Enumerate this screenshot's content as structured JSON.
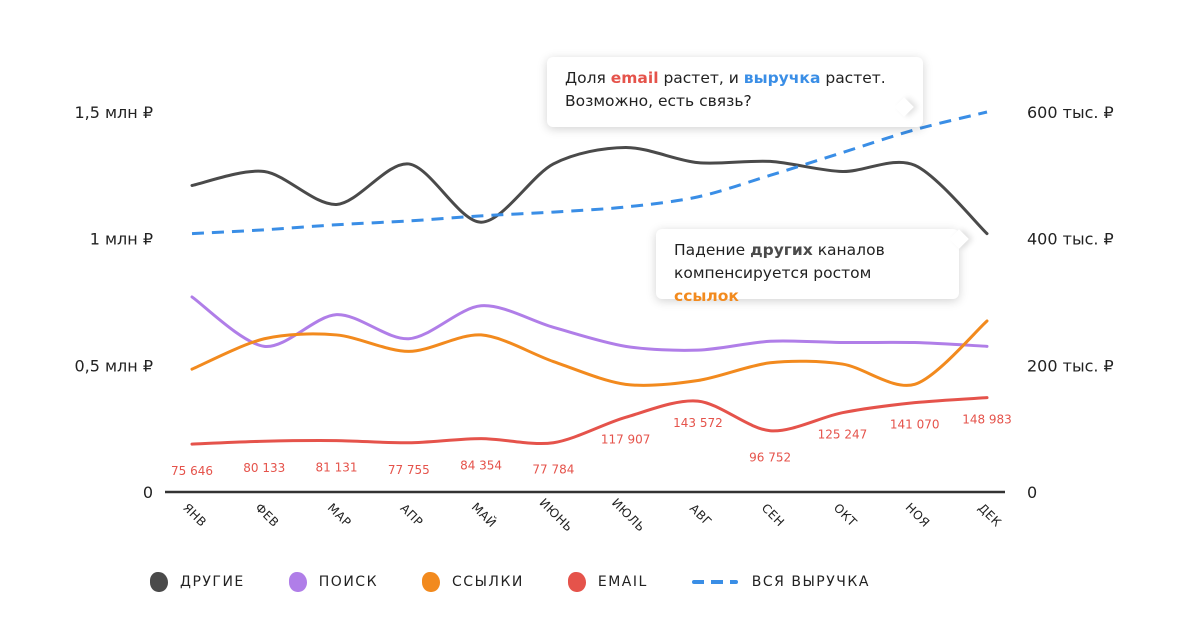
{
  "chart_data": {
    "type": "line",
    "categories": [
      "ЯНВ",
      "ФЕВ",
      "МАР",
      "АПР",
      "МАЙ",
      "ИЮНЬ",
      "ИЮЛЬ",
      "АВГ",
      "СЕН",
      "ОКТ",
      "НОЯ",
      "ДЕК"
    ],
    "left_axis": {
      "ticks": [
        {
          "value": 0,
          "label": "0"
        },
        {
          "value": 500000,
          "label": "0,5 млн ₽"
        },
        {
          "value": 1000000,
          "label": "1 млн ₽"
        },
        {
          "value": 1500000,
          "label": "1,5 млн ₽"
        }
      ],
      "ylim": [
        0,
        1500000
      ]
    },
    "right_axis": {
      "ticks": [
        {
          "value": 0,
          "label": "0"
        },
        {
          "value": 200000,
          "label": "200 тыс. ₽"
        },
        {
          "value": 400000,
          "label": "400 тыс. ₽"
        },
        {
          "value": 600000,
          "label": "600 тыс. ₽"
        }
      ],
      "ylim": [
        0,
        600000
      ]
    },
    "series": [
      {
        "name": "ДРУГИЕ",
        "axis": "left",
        "color": "#4a4a4a",
        "style": "solid",
        "values": [
          1210000,
          1265000,
          1135000,
          1295000,
          1065000,
          1295000,
          1360000,
          1300000,
          1305000,
          1265000,
          1290000,
          1020000
        ]
      },
      {
        "name": "ПОИСК",
        "axis": "left",
        "color": "#b07ee8",
        "style": "solid",
        "values": [
          770000,
          575000,
          700000,
          605000,
          735000,
          650000,
          575000,
          560000,
          595000,
          590000,
          590000,
          575000
        ]
      },
      {
        "name": "ССЫЛКИ",
        "axis": "left",
        "color": "#f28a1e",
        "style": "solid",
        "values": [
          485000,
          605000,
          620000,
          555000,
          620000,
          515000,
          425000,
          440000,
          510000,
          505000,
          425000,
          675000
        ]
      },
      {
        "name": "EMAIL",
        "axis": "right",
        "color": "#e5534b",
        "style": "solid",
        "values": [
          75646,
          80133,
          81131,
          77755,
          84354,
          77784,
          117907,
          143572,
          96752,
          125247,
          141070,
          148983
        ],
        "labels": [
          "75 646",
          "80 133",
          "81 131",
          "77 755",
          "84 354",
          "77 784",
          "117 907",
          "143 572",
          "96 752",
          "125 247",
          "141 070",
          "148 983"
        ]
      },
      {
        "name": "ВСЯ ВЫРУЧКА",
        "axis": "left",
        "color": "#3a8ee6",
        "style": "dashed",
        "values": [
          1020000,
          1035000,
          1055000,
          1070000,
          1090000,
          1105000,
          1125000,
          1165000,
          1250000,
          1340000,
          1430000,
          1500000
        ]
      }
    ],
    "grid": false,
    "legend_position": "bottom"
  },
  "callouts": {
    "email_revenue": {
      "part1": "Доля ",
      "email": "email",
      "part2": " растет, и ",
      "revenue": "выручка",
      "part3": " растет.",
      "line2": "Возможно, есть связь?",
      "email_color": "#e5534b",
      "revenue_color": "#3a8ee6"
    },
    "other_links": {
      "part1": "Падение ",
      "other": "других",
      "part2": " каналов",
      "line2_part1": "компенсируется ростом ",
      "links": "ссылок",
      "other_color": "#4a4a4a",
      "links_color": "#f28a1e"
    }
  },
  "legend": [
    {
      "label": "ДРУГИЕ",
      "color": "#4a4a4a",
      "shape": "blob"
    },
    {
      "label": "ПОИСК",
      "color": "#b07ee8",
      "shape": "blob"
    },
    {
      "label": "ССЫЛКИ",
      "color": "#f28a1e",
      "shape": "blob"
    },
    {
      "label": "EMAIL",
      "color": "#e5534b",
      "shape": "blob"
    },
    {
      "label": "ВСЯ ВЫРУЧКА",
      "color": "#3a8ee6",
      "shape": "dash"
    }
  ]
}
